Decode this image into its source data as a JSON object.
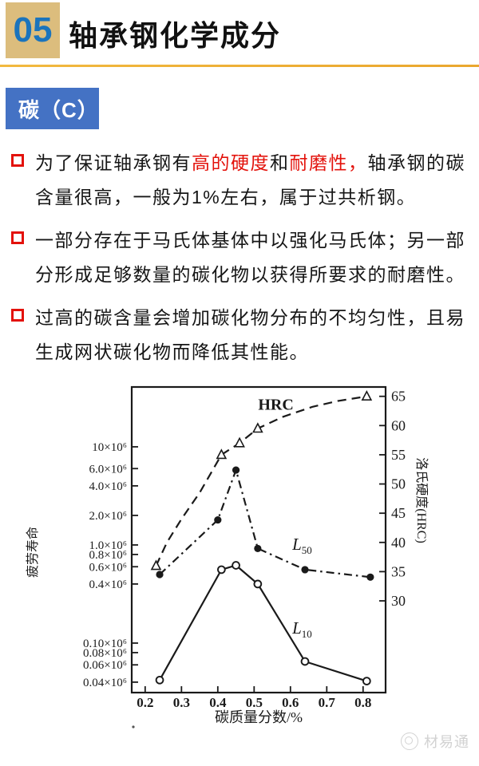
{
  "header": {
    "number": "05",
    "title": "轴承钢化学成分"
  },
  "badge": {
    "label": "碳（C）"
  },
  "bullets": [
    {
      "segments": [
        {
          "t": "为了保证轴承钢有",
          "red": false
        },
        {
          "t": "高的硬度",
          "red": true
        },
        {
          "t": "和",
          "red": false
        },
        {
          "t": "耐磨性，",
          "red": true
        },
        {
          "t": "轴承钢的碳含量很高，一般为1%左右，属于过共析钢。",
          "red": false
        }
      ]
    },
    {
      "segments": [
        {
          "t": "一部分存在于马氏体基体中以强化马氏体；另一部分形成足够数量的碳化物以获得所要求的耐磨性。",
          "red": false
        }
      ]
    },
    {
      "segments": [
        {
          "t": "过高的碳含量会增加碳化物分布的不均匀性，且易生成网状碳化物而降低其性能。",
          "red": false
        }
      ]
    }
  ],
  "chart_data": {
    "type": "line",
    "title": "",
    "xlabel": "碳质量分数/%",
    "ylabel_left": "疲劳寿命",
    "ylabel_right": "洛氏硬度(HRC)",
    "x_ticks": [
      0.2,
      0.3,
      0.4,
      0.5,
      0.6,
      0.7,
      0.8
    ],
    "xlim": [
      0.163,
      0.862
    ],
    "y_left_scale": "log",
    "ylim_left": [
      31300,
      40700000
    ],
    "y_left_ticks": [
      {
        "label": "10×10⁶",
        "value": 10000000
      },
      {
        "label": "6.0×10⁶",
        "value": 6000000
      },
      {
        "label": "4.0×10⁶",
        "value": 4000000
      },
      {
        "label": "2.0×10⁶",
        "value": 2000000
      },
      {
        "label": "1.0×10⁶",
        "value": 1000000
      },
      {
        "label": "0.8×10⁶",
        "value": 800000
      },
      {
        "label": "0.6×10⁶",
        "value": 600000
      },
      {
        "label": "0.4×10⁶",
        "value": 400000
      },
      {
        "label": "0.10×10⁶",
        "value": 100000
      },
      {
        "label": "0.08×10⁶",
        "value": 80000
      },
      {
        "label": "0.06×10⁶",
        "value": 60000
      },
      {
        "label": "0.04×10⁶",
        "value": 40000
      }
    ],
    "ylim_right": [
      14.3,
      66.6
    ],
    "y_right_ticks": [
      65,
      60,
      55,
      50,
      45,
      40,
      35,
      30
    ],
    "legend_position": "inline-labels",
    "grid": false,
    "series": [
      {
        "name": "HRC",
        "axis": "right",
        "style": "dashed",
        "marker": "triangle-open",
        "points": [
          [
            0.23,
            36
          ],
          [
            0.26,
            40
          ],
          [
            0.3,
            44
          ],
          [
            0.35,
            48.5
          ],
          [
            0.41,
            55
          ],
          [
            0.46,
            57
          ],
          [
            0.51,
            59.5
          ],
          [
            0.58,
            61.5
          ],
          [
            0.66,
            63.2
          ],
          [
            0.73,
            64.2
          ],
          [
            0.81,
            65
          ]
        ],
        "marker_points": [
          [
            0.23,
            36
          ],
          [
            0.41,
            55
          ],
          [
            0.46,
            57
          ],
          [
            0.51,
            59.5
          ],
          [
            0.81,
            65
          ]
        ]
      },
      {
        "name": "L50",
        "axis": "left",
        "style": "dashdot",
        "marker": "circle-filled",
        "points": [
          [
            0.24,
            500000
          ],
          [
            0.4,
            1800000
          ],
          [
            0.45,
            5800000
          ],
          [
            0.51,
            920000
          ],
          [
            0.64,
            560000
          ],
          [
            0.82,
            470000
          ]
        ]
      },
      {
        "name": "L10",
        "axis": "left",
        "style": "solid",
        "marker": "circle-open",
        "points": [
          [
            0.24,
            42000
          ],
          [
            0.41,
            560000
          ],
          [
            0.45,
            620000
          ],
          [
            0.51,
            400000
          ],
          [
            0.64,
            65000
          ],
          [
            0.81,
            41000
          ]
        ]
      }
    ],
    "annotations": [
      {
        "text": "HRC",
        "sub": "",
        "axis": "right",
        "x": 0.56,
        "y": 63.5
      },
      {
        "text": "L",
        "sub": "50",
        "axis": "left",
        "x": 0.605,
        "y": 1000000
      },
      {
        "text": "L",
        "sub": "10",
        "axis": "left",
        "x": 0.605,
        "y": 140000
      }
    ]
  },
  "footer": {
    "brand": "材易通"
  },
  "colors": {
    "section_box_gold": "#DCBD7D",
    "section_number_blue": "#1B74BC",
    "divider_gold": "#EAA72E",
    "badge_blue": "#4472C4",
    "highlight_red": "#E3120B",
    "text_ink": "#1A1A1A",
    "watermark_gray": "#D2D2D2"
  }
}
